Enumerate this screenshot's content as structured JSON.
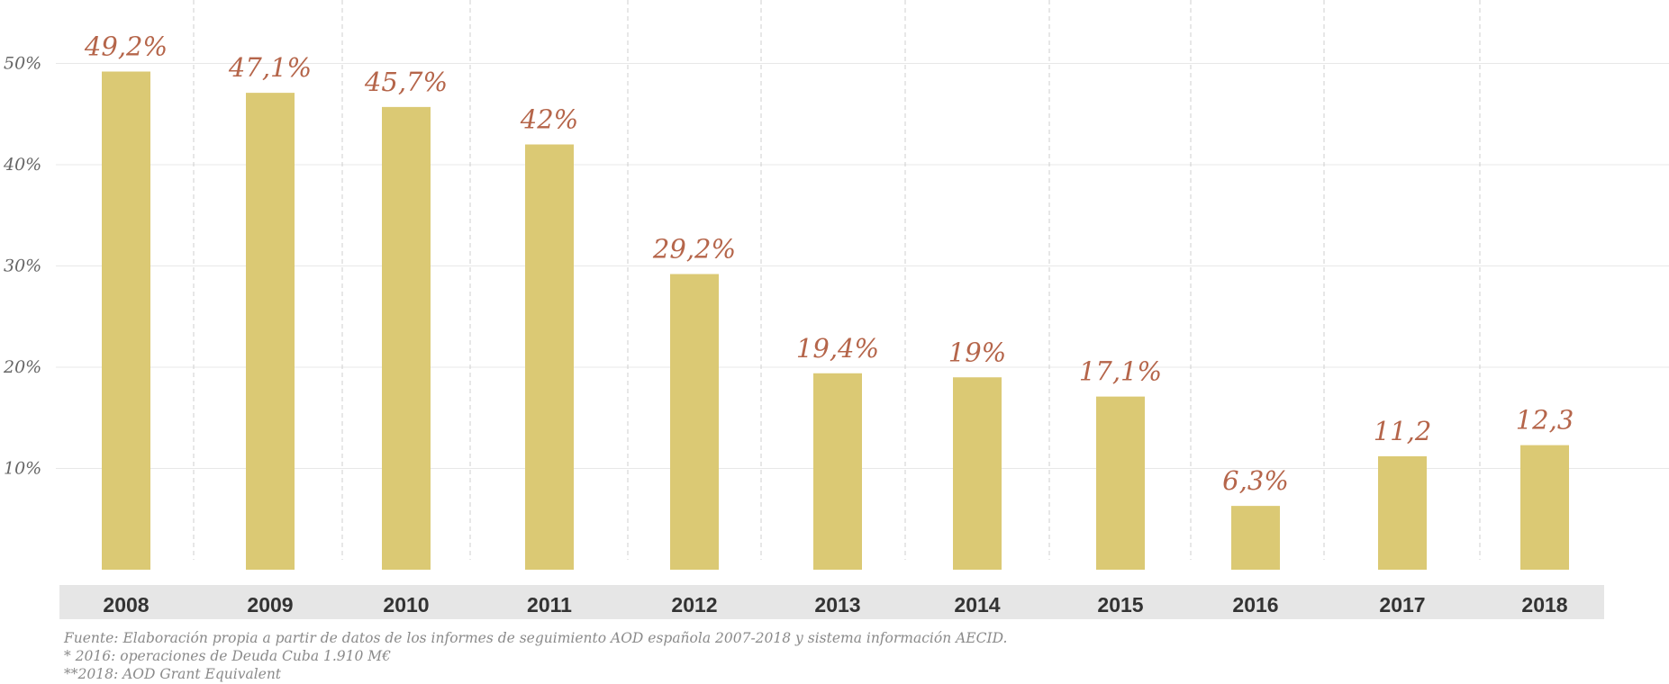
{
  "chart_data": {
    "type": "bar",
    "categories": [
      "2008",
      "2009",
      "2010",
      "2011",
      "2012",
      "2013",
      "2014",
      "2015",
      "2016",
      "2017",
      "2018"
    ],
    "values": [
      49.2,
      47.1,
      45.7,
      42,
      29.2,
      19.4,
      19,
      17.1,
      6.3,
      11.2,
      12.3
    ],
    "value_labels": [
      "49,2%",
      "47,1%",
      "45,7%",
      "42%",
      "29,2%",
      "19,4%",
      "19%",
      "17,1%",
      "6,3%",
      "11,2",
      "12,3"
    ],
    "y_ticks": [
      10,
      20,
      30,
      40,
      50
    ],
    "y_tick_labels": [
      "10%",
      "20%",
      "30%",
      "40%",
      "50%"
    ],
    "ylim": [
      0,
      53
    ],
    "grid": true,
    "colors": {
      "bar": "#dbc974",
      "value_label": "#b5654a",
      "axis_band": "#e6e6e6",
      "grid": "#e8e8e8"
    }
  },
  "notes": {
    "source": "Fuente: Elaboración propia a partir de datos de los informes de seguimiento AOD española 2007-2018 y sistema información AECID.",
    "note_2016": "* 2016: operaciones de Deuda Cuba 1.910 M€",
    "note_2018": "**2018: AOD Grant Equivalent"
  }
}
